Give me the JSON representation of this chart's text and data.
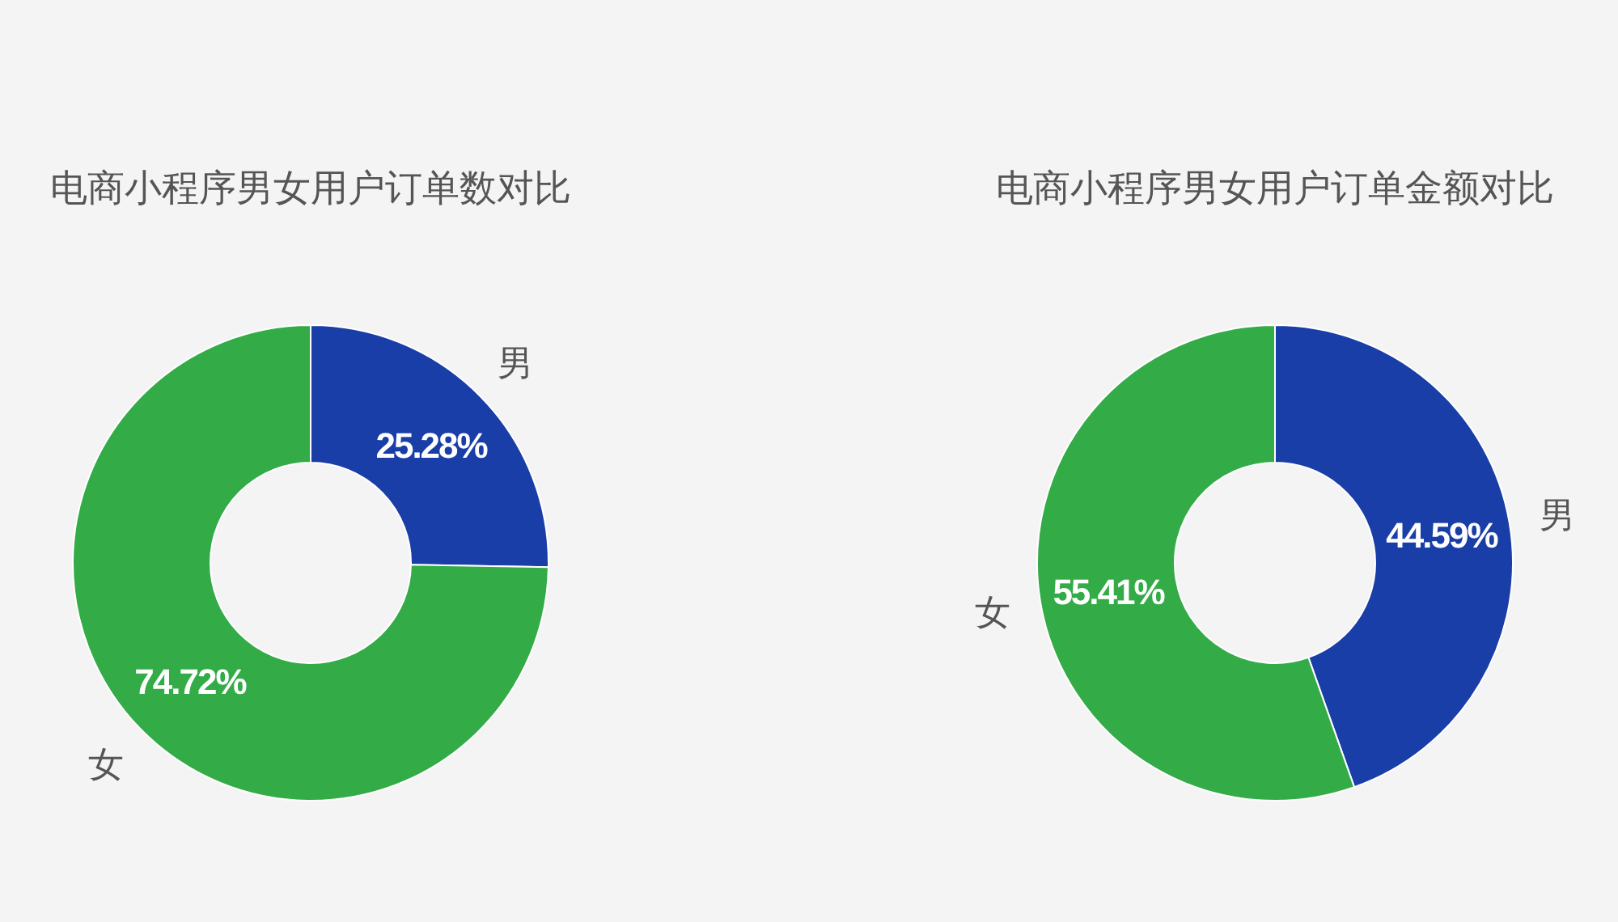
{
  "chart_data": [
    {
      "type": "donut",
      "title": "电商小程序男女用户订单数对比",
      "categories": [
        "男",
        "女"
      ],
      "values": [
        25.28,
        74.72
      ],
      "colors": [
        "#1a3ea8",
        "#33ac48"
      ],
      "value_labels": [
        "25.28%",
        "74.72%"
      ]
    },
    {
      "type": "donut",
      "title": "电商小程序男女用户订单金额对比",
      "categories": [
        "男",
        "女"
      ],
      "values": [
        44.59,
        55.41
      ],
      "colors": [
        "#1a3ea8",
        "#33ac48"
      ],
      "value_labels": [
        "44.59%",
        "55.41%"
      ]
    }
  ]
}
